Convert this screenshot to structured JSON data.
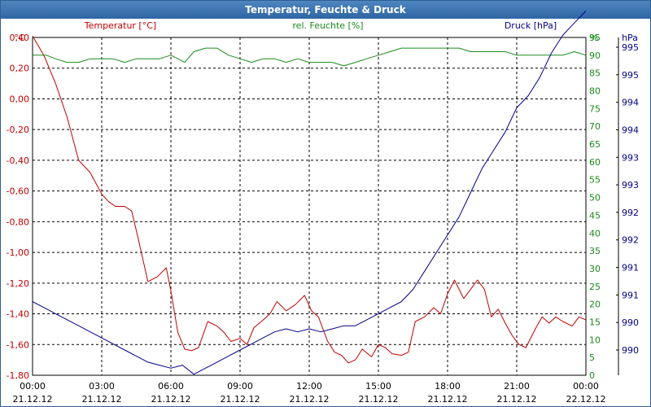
{
  "title": "Temperatur, Feuchte & Druck",
  "colors": {
    "temperature": "#c00000",
    "humidity": "#1b8a1b",
    "pressure": "#00008b",
    "grid": "#000000",
    "titlebar": "#2e66a4"
  },
  "chart_data": {
    "type": "line",
    "title": "Temperatur, Feuchte & Druck",
    "grid": true,
    "x_ticks": [
      {
        "time": "00:00",
        "date": "21.12.12"
      },
      {
        "time": "03:00",
        "date": "21.12.12"
      },
      {
        "time": "06:00",
        "date": "21.12.12"
      },
      {
        "time": "09:00",
        "date": "21.12.12"
      },
      {
        "time": "12:00",
        "date": "21.12.12"
      },
      {
        "time": "15:00",
        "date": "21.12.12"
      },
      {
        "time": "18:00",
        "date": "21.12.12"
      },
      {
        "time": "21:00",
        "date": "21.12.12"
      },
      {
        "time": "00:00",
        "date": "22.12.12"
      }
    ],
    "x_range_hours": [
      0,
      24
    ],
    "axes": {
      "temperature": {
        "unit": "°C",
        "series_label": "Temperatur [°C]",
        "ylim": [
          -1.8,
          0.4
        ],
        "tick_labels": [
          "0,40",
          "0,20",
          "0,00",
          "-0,20",
          "-0,40",
          "-0,60",
          "-0,80",
          "-1,00",
          "-1,20",
          "-1,40",
          "-1,60",
          "-1,80"
        ]
      },
      "humidity": {
        "unit": "%",
        "series_label": "rel. Feuchte [%]",
        "ylim": [
          0,
          95
        ],
        "tick_labels": [
          "95",
          "90",
          "85",
          "80",
          "75",
          "70",
          "65",
          "60",
          "55",
          "50",
          "45",
          "40",
          "35",
          "30",
          "25",
          "20",
          "15",
          "10",
          "5",
          "0"
        ]
      },
      "pressure": {
        "unit": "hPa",
        "series_label": "Druck [hPa]",
        "tick_labels": [
          "995",
          "995",
          "994",
          "994",
          "993",
          "993",
          "992",
          "992",
          "991",
          "991",
          "990",
          "990"
        ]
      }
    },
    "series": [
      {
        "name": "Temperatur [°C]",
        "axis": "temperature",
        "x": [
          0,
          0.5,
          1,
          1.5,
          2,
          2.5,
          3,
          3.3,
          3.6,
          4,
          4.3,
          4.6,
          5,
          5.4,
          5.8,
          6,
          6.3,
          6.6,
          6.9,
          7.2,
          7.6,
          8,
          8.3,
          8.6,
          9,
          9.3,
          9.6,
          10,
          10.3,
          10.6,
          11,
          11.4,
          11.8,
          12.1,
          12.4,
          12.8,
          13.1,
          13.4,
          13.7,
          14,
          14.3,
          14.7,
          15,
          15.3,
          15.6,
          16,
          16.3,
          16.6,
          17,
          17.4,
          17.7,
          18,
          18.3,
          18.7,
          19,
          19.3,
          19.6,
          19.9,
          20.2,
          20.5,
          20.8,
          21.1,
          21.4,
          21.8,
          22.1,
          22.4,
          22.7,
          23,
          23.4,
          23.7,
          24
        ],
        "y": [
          0.41,
          0.28,
          0.1,
          -0.12,
          -0.4,
          -0.48,
          -0.62,
          -0.67,
          -0.7,
          -0.7,
          -0.73,
          -0.92,
          -1.19,
          -1.16,
          -1.1,
          -1.25,
          -1.52,
          -1.63,
          -1.64,
          -1.62,
          -1.45,
          -1.48,
          -1.52,
          -1.58,
          -1.56,
          -1.6,
          -1.49,
          -1.44,
          -1.4,
          -1.32,
          -1.38,
          -1.34,
          -1.28,
          -1.38,
          -1.42,
          -1.58,
          -1.65,
          -1.67,
          -1.72,
          -1.7,
          -1.63,
          -1.68,
          -1.6,
          -1.62,
          -1.66,
          -1.67,
          -1.65,
          -1.45,
          -1.42,
          -1.36,
          -1.4,
          -1.27,
          -1.18,
          -1.3,
          -1.24,
          -1.18,
          -1.24,
          -1.42,
          -1.37,
          -1.46,
          -1.54,
          -1.6,
          -1.62,
          -1.5,
          -1.42,
          -1.46,
          -1.42,
          -1.45,
          -1.48,
          -1.42,
          -1.44
        ]
      },
      {
        "name": "rel. Feuchte [%]",
        "axis": "humidity",
        "x": [
          0,
          0.6,
          1,
          1.5,
          2,
          2.5,
          3,
          3.5,
          4,
          4.5,
          5,
          5.5,
          6,
          6.3,
          6.6,
          7,
          7.5,
          8,
          8.5,
          9,
          9.5,
          10,
          10.5,
          11,
          11.5,
          12,
          12.5,
          13,
          13.5,
          14,
          14.5,
          15,
          15.5,
          16,
          16.5,
          17,
          17.5,
          18,
          18.5,
          19,
          19.5,
          20,
          20.5,
          21,
          21.5,
          22,
          22.5,
          23,
          23.5,
          24
        ],
        "y": [
          90,
          90,
          89,
          88,
          88,
          89,
          89,
          89,
          88,
          89,
          89,
          89,
          90,
          89,
          88,
          91,
          92,
          92,
          90,
          89,
          88,
          89,
          89,
          88,
          89,
          88,
          88,
          88,
          87,
          88,
          89,
          90,
          91,
          92,
          92,
          92,
          92,
          92,
          92,
          91,
          91,
          91,
          91,
          90,
          90,
          90,
          90,
          90,
          91,
          90
        ]
      },
      {
        "name": "Druck [hPa]",
        "axis": "pressure",
        "x": [
          0,
          0.5,
          1,
          1.5,
          2,
          2.5,
          3,
          3.5,
          4,
          4.5,
          5,
          5.5,
          6,
          6.5,
          7,
          7.5,
          8,
          8.5,
          9,
          9.5,
          10,
          10.5,
          11,
          11.5,
          12,
          12.5,
          13,
          13.5,
          14,
          14.5,
          15,
          15.5,
          16,
          16.5,
          17,
          17.5,
          18,
          18.5,
          19,
          19.5,
          20,
          20.5,
          21,
          21.5,
          22,
          22.5,
          23,
          23.5,
          24
        ],
        "y": [
          990.8,
          990.7,
          990.6,
          990.5,
          990.4,
          990.3,
          990.2,
          990.1,
          990.0,
          989.9,
          989.8,
          989.75,
          989.7,
          989.75,
          989.6,
          989.7,
          989.8,
          989.9,
          990.0,
          990.1,
          990.2,
          990.3,
          990.35,
          990.3,
          990.35,
          990.3,
          990.35,
          990.4,
          990.4,
          990.5,
          990.6,
          990.7,
          990.8,
          991.0,
          991.3,
          991.6,
          991.9,
          992.2,
          992.6,
          993.0,
          993.3,
          993.6,
          994.0,
          994.2,
          994.5,
          994.9,
          995.2,
          995.4,
          995.6
        ]
      }
    ]
  }
}
